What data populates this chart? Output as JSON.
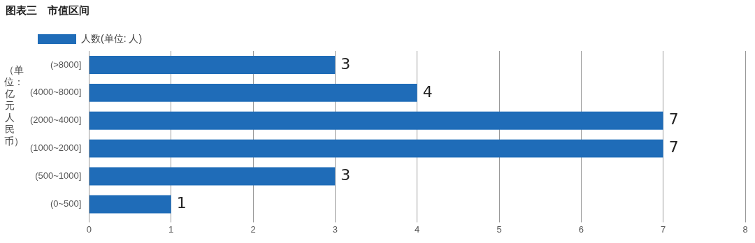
{
  "chart_data": {
    "type": "bar",
    "orientation": "horizontal",
    "title": "图表三　市值区间",
    "ylabel": "（单位：亿元人民币）",
    "categories": [
      "(>8000]",
      "(4000~8000]",
      "(2000~4000]",
      "(1000~2000]",
      "(500~1000]",
      "(0~500]"
    ],
    "series": [
      {
        "name": "人数(单位: 人)",
        "color": "#1f6cb8",
        "values": [
          3,
          4,
          7,
          7,
          3,
          1
        ]
      }
    ],
    "xlim": [
      0,
      8
    ],
    "xticks": [
      0,
      1,
      2,
      3,
      4,
      5,
      6,
      7,
      8
    ],
    "grid": "x",
    "legend": "top left",
    "data_labels": true
  }
}
